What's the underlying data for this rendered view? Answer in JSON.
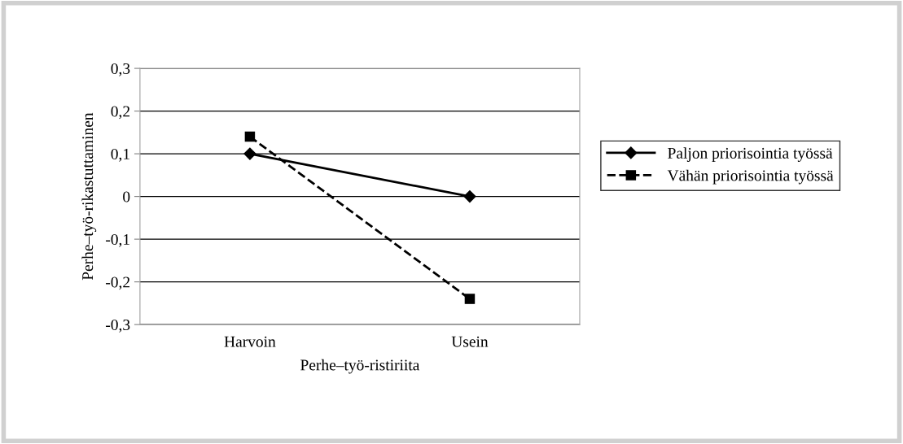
{
  "chart_data": {
    "type": "line",
    "xlabel": "Perhe–työ-ristiriita",
    "ylabel": "Perhe–työ-rikastuttaminen",
    "categories": [
      "Harvoin",
      "Usein"
    ],
    "series": [
      {
        "name": "Paljon priorisointia työssä",
        "color": "#000000",
        "values": [
          0.1,
          0.0
        ],
        "marker": "diamond",
        "line_style": "solid"
      },
      {
        "name": "Vähän priorisointia työssä",
        "color": "#000000",
        "values": [
          0.14,
          -0.24
        ],
        "marker": "square",
        "line_style": "dashed"
      }
    ],
    "ylim": [
      -0.3,
      0.3
    ],
    "yticks": [
      {
        "value": -0.3,
        "label": "-0,3"
      },
      {
        "value": -0.2,
        "label": "-0,2"
      },
      {
        "value": -0.1,
        "label": "-0,1"
      },
      {
        "value": 0,
        "label": "0"
      },
      {
        "value": 0.1,
        "label": "0,1"
      },
      {
        "value": 0.2,
        "label": "0,2"
      },
      {
        "value": 0.3,
        "label": "0,3"
      }
    ],
    "grid": "y",
    "legend": "right"
  }
}
